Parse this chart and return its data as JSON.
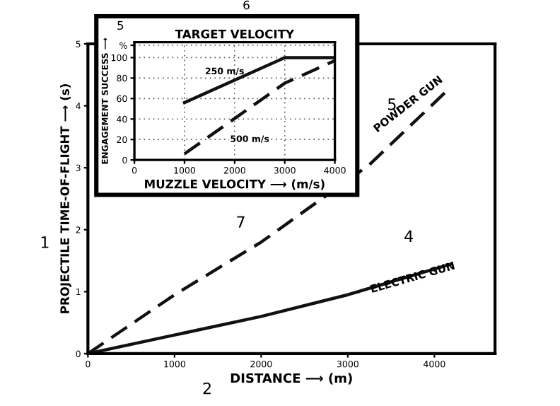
{
  "chart_data": [
    {
      "type": "line",
      "xlabel": "DISTANCE ⟶ (m)",
      "ylabel": "PROJECTILE TIME-OF-FLIGHT ⟶ (s)",
      "xlim": [
        0,
        4700
      ],
      "ylim": [
        0,
        5
      ],
      "xticks": [
        0,
        1000,
        2000,
        3000,
        4000
      ],
      "yticks": [
        0,
        1,
        2,
        3,
        4,
        5
      ],
      "grid": false,
      "series": [
        {
          "name": "POWDER GUN",
          "color": "#111111",
          "line_style": "dashed",
          "x": [
            0,
            1000,
            2000,
            3250,
            4150
          ],
          "values": [
            0,
            0.95,
            1.8,
            3.05,
            4.25
          ]
        },
        {
          "name": "ELECTRIC GUN",
          "color": "#111111",
          "line_style": "solid",
          "x": [
            0,
            1000,
            2000,
            3000,
            4200
          ],
          "values": [
            0,
            0.3,
            0.6,
            0.95,
            1.45
          ]
        }
      ],
      "annotations": [
        "1",
        "2",
        "6",
        "5",
        "5",
        "4",
        "7"
      ]
    },
    {
      "type": "line",
      "title": "TARGET VELOCITY",
      "xlabel": "MUZZLE VELOCITY ⟶ (m/s)",
      "ylabel": "ENGAGEMENT SUCCESS ⟶",
      "xlim": [
        0,
        4000
      ],
      "ylim": [
        0,
        115
      ],
      "xticks": [
        0,
        1000,
        2000,
        3000,
        4000
      ],
      "yticks": [
        0,
        20,
        40,
        60,
        80,
        100,
        {
          "value": 112,
          "label": "%"
        }
      ],
      "grid": true,
      "series": [
        {
          "name": "250 m/s",
          "color": "#111111",
          "line_style": "solid",
          "x": [
            1000,
            3000,
            4000
          ],
          "values": [
            56,
            100,
            100
          ]
        },
        {
          "name": "500 m/s",
          "color": "#111111",
          "line_style": "dashed",
          "x": [
            1000,
            3000,
            4000
          ],
          "values": [
            6,
            75,
            97
          ]
        }
      ]
    }
  ]
}
